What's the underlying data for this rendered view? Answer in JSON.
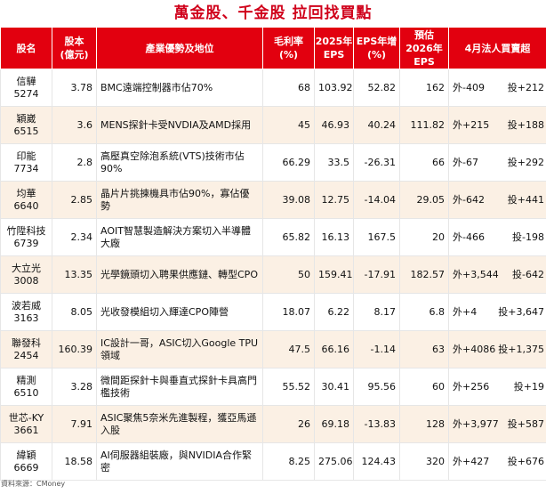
{
  "title": "萬金股、千金股 拉回找買點",
  "headers": {
    "name": "股名",
    "capital": "股本\n(億元)",
    "advantage": "產業優勢及地位",
    "gross_margin": "毛利率\n(%)",
    "eps2025": "2025年\nEPS",
    "eps_growth": "EPS年增\n(%)",
    "eps2026": "預估\n2026年\nEPS",
    "april_flow": "4月法人買賣超"
  },
  "rows": [
    {
      "name": "信驊",
      "code": "5274",
      "capital": "3.78",
      "advantage": "BMC遠端控制器市佔70%",
      "gross_margin": "68",
      "eps2025": "103.92",
      "eps_growth": "52.82",
      "eps2026": "162",
      "foreign": "外-409",
      "trust": "投+212"
    },
    {
      "name": "穎崴",
      "code": "6515",
      "capital": "3.6",
      "advantage": "MENS探針卡受NVDIA及AMD採用",
      "gross_margin": "45",
      "eps2025": "46.93",
      "eps_growth": "40.24",
      "eps2026": "111.82",
      "foreign": "外+215",
      "trust": "投+188"
    },
    {
      "name": "印能",
      "code": "7734",
      "capital": "2.8",
      "advantage": "高壓真空除泡系統(VTS)技術市佔90%",
      "gross_margin": "66.29",
      "eps2025": "33.5",
      "eps_growth": "-26.31",
      "eps2026": "66",
      "foreign": "外-67",
      "trust": "投+292"
    },
    {
      "name": "均華",
      "code": "6640",
      "capital": "2.85",
      "advantage": "晶片片挑揀機具市佔90%，寡佔優勢",
      "gross_margin": "39.08",
      "eps2025": "12.75",
      "eps_growth": "-14.04",
      "eps2026": "29.05",
      "foreign": "外-642",
      "trust": "投+441"
    },
    {
      "name": "竹陞科技",
      "code": "6739",
      "capital": "2.34",
      "advantage": "AOIT智慧製造解決方案切入半導體大廠",
      "gross_margin": "65.82",
      "eps2025": "16.13",
      "eps_growth": "167.5",
      "eps2026": "20",
      "foreign": "外-466",
      "trust": "投-198"
    },
    {
      "name": "大立光",
      "code": "3008",
      "capital": "13.35",
      "advantage": "光學鏡頭切入聘果供應鏈、轉型CPO",
      "gross_margin": "50",
      "eps2025": "159.41",
      "eps_growth": "-17.91",
      "eps2026": "182.57",
      "foreign": "外+3,544",
      "trust": "投-642"
    },
    {
      "name": "波若威",
      "code": "3163",
      "capital": "8.05",
      "advantage": "光收發模組切入輝達CPO陣營",
      "gross_margin": "18.07",
      "eps2025": "6.22",
      "eps_growth": "8.17",
      "eps2026": "6.8",
      "foreign": "外+4",
      "trust": "投+3,647"
    },
    {
      "name": "聯發科",
      "code": "2454",
      "capital": "160.39",
      "advantage": "IC設計一哥，ASIC切入Google TPU領域",
      "gross_margin": "47.5",
      "eps2025": "66.16",
      "eps_growth": "-1.14",
      "eps2026": "63",
      "foreign": "外+4086",
      "trust": "投+1,375"
    },
    {
      "name": "精測",
      "code": "6510",
      "capital": "3.28",
      "advantage": "微間距探針卡與垂直式探針卡具高門檻技術",
      "gross_margin": "55.52",
      "eps2025": "30.41",
      "eps_growth": "95.56",
      "eps2026": "60",
      "foreign": "外+256",
      "trust": "投+19"
    },
    {
      "name": "世芯-KY",
      "code": "3661",
      "capital": "7.91",
      "advantage": "ASIC聚焦5奈米先進製程，獲亞馬遜入股",
      "gross_margin": "26",
      "eps2025": "69.18",
      "eps_growth": "-13.83",
      "eps2026": "128",
      "foreign": "外+3,977",
      "trust": "投+587"
    },
    {
      "name": "緯穎",
      "code": "6669",
      "capital": "18.58",
      "advantage": "AI伺服器組裝廠，與NVIDIA合作緊密",
      "gross_margin": "8.25",
      "eps2025": "275.06",
      "eps_growth": "124.43",
      "eps2026": "320",
      "foreign": "外+427",
      "trust": "投+676"
    }
  ],
  "source": "資料來源：CMoney",
  "colors": {
    "accent": "#e2000f",
    "title": "#d0021b",
    "row_alt": "#fbf0e4"
  }
}
